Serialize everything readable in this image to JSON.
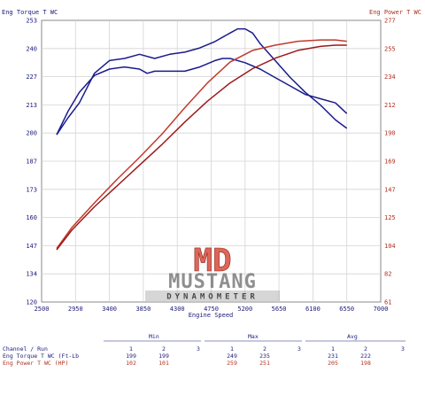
{
  "chart_data": {
    "type": "line",
    "left_axis_title": "Eng Torque T WC",
    "right_axis_title": "Eng Power T WC",
    "xlabel": "Engine Speed",
    "x_ticks": [
      "2500",
      "2950",
      "3400",
      "3850",
      "4300",
      "4750",
      "5200",
      "5650",
      "6100",
      "6550",
      "7000"
    ],
    "xlim": [
      2500,
      7000
    ],
    "left_ticks": [
      "253",
      "240",
      "227",
      "213",
      "200",
      "187",
      "173",
      "160",
      "147",
      "134",
      "120"
    ],
    "left_ylim": [
      120,
      253
    ],
    "right_ticks": [
      "277",
      "255",
      "234",
      "212",
      "190",
      "169",
      "147",
      "125",
      "104",
      "82",
      "61"
    ],
    "right_ylim": [
      61,
      277
    ],
    "grid": true,
    "series": [
      {
        "axis": "left",
        "color": "#1a1a8c",
        "x": [
          2700,
          2850,
          3000,
          3200,
          3400,
          3600,
          3800,
          4000,
          4200,
          4400,
          4600,
          4800,
          5000,
          5100,
          5200,
          5300,
          5400,
          5600,
          5800,
          6000,
          6200,
          6400,
          6550
        ],
        "y": [
          199,
          207,
          214,
          228,
          234,
          235,
          237,
          235,
          237,
          238,
          240,
          243,
          247,
          249,
          249,
          247,
          242,
          234,
          226,
          219,
          213,
          206,
          202
        ]
      },
      {
        "axis": "left",
        "color": "#1a1a8c",
        "x": [
          2700,
          2850,
          3000,
          3200,
          3400,
          3600,
          3800,
          3900,
          4000,
          4200,
          4400,
          4600,
          4800,
          4900,
          5000,
          5200,
          5400,
          5600,
          5800,
          6000,
          6200,
          6400,
          6550
        ],
        "y": [
          199,
          210,
          219,
          227,
          230,
          231,
          230,
          228,
          229,
          229,
          229,
          231,
          234,
          235,
          235,
          233,
          230,
          226,
          222,
          218,
          216,
          214,
          209
        ]
      },
      {
        "axis": "right",
        "color": "#c03a2b",
        "x": [
          2700,
          2900,
          3200,
          3500,
          3800,
          4100,
          4400,
          4700,
          5000,
          5300,
          5600,
          5900,
          6200,
          6400,
          6550
        ],
        "y": [
          102,
          118,
          137,
          155,
          172,
          190,
          210,
          229,
          245,
          254,
          258,
          261,
          262,
          262,
          261
        ]
      },
      {
        "axis": "right",
        "color": "#9a1a1a",
        "x": [
          2700,
          2900,
          3200,
          3500,
          3800,
          4100,
          4400,
          4700,
          5000,
          5300,
          5600,
          5900,
          6200,
          6400,
          6550
        ],
        "y": [
          101,
          116,
          134,
          150,
          166,
          182,
          199,
          215,
          229,
          240,
          248,
          254,
          257,
          258,
          258
        ]
      }
    ]
  },
  "logo": {
    "letters": "MD",
    "word": "MUSTANG",
    "sub": "DYNAMOMETER"
  },
  "table": {
    "headers": {
      "min": "Min",
      "max": "Max",
      "avg": "Avg",
      "channel": "Channel / Run"
    },
    "run_numbers": [
      "1",
      "2",
      "3"
    ],
    "rows": [
      {
        "label": "Eng Torque T WC (Ft-Lb",
        "min": [
          "199",
          "199"
        ],
        "max": [
          "249",
          "235"
        ],
        "avg": [
          "231",
          "222"
        ]
      },
      {
        "label": "Eng Power T WC (HP)",
        "min": [
          "102",
          "101"
        ],
        "max": [
          "259",
          "251"
        ],
        "avg": [
          "205",
          "198"
        ]
      }
    ]
  }
}
